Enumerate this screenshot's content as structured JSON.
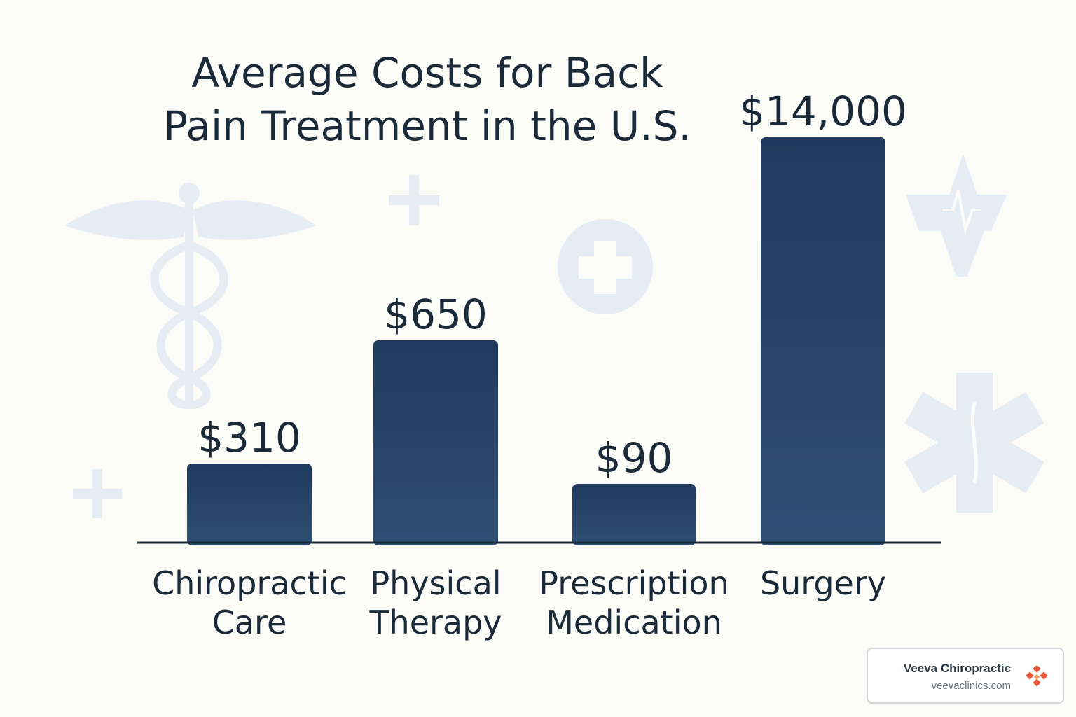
{
  "chart_data": {
    "type": "bar",
    "title": "Average Costs for Back Pain Treatment in the U.S.",
    "title_lines": [
      "Average Costs for Back",
      "Pain Treatment in the U.S."
    ],
    "categories": [
      "Chiropractic Care",
      "Physical Therapy",
      "Prescription Medication",
      "Surgery"
    ],
    "category_lines": [
      [
        "Chiropractic",
        "Care"
      ],
      [
        "Physical",
        "Therapy"
      ],
      [
        "Prescription",
        "Medication"
      ],
      [
        "Surgery"
      ]
    ],
    "values": [
      310,
      650,
      90,
      14000
    ],
    "data_labels": [
      "$310",
      "$650",
      "$90",
      "$14,000"
    ],
    "xlabel": "",
    "ylabel": "",
    "grid": false,
    "legend": "none",
    "colors": {
      "bar_top": "#1f3a5c",
      "bar_bottom": "#2e4f73",
      "text": "#1b2a38",
      "axis": "#1b2a38",
      "background_icons": "#e6ecf3"
    },
    "background_icons": [
      "caduceus-icon",
      "plus-icon",
      "medical-cross-circle-icon",
      "heartbeat-icon",
      "star-of-life-icon"
    ]
  },
  "branding": {
    "name": "Veeva Chiropractic",
    "url": "veevaclinics.com",
    "logo_icon": "diamond-logo-icon",
    "logo_color": "#e8573a"
  }
}
